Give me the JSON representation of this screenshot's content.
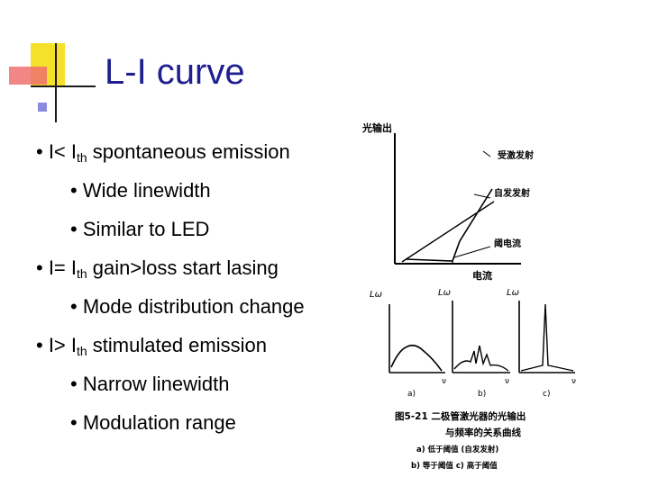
{
  "slide": {
    "title": "L-I curve",
    "bullets": [
      {
        "level": 1,
        "prefix": "• I< I",
        "sub": "th",
        "suffix": " spontaneous emission"
      },
      {
        "level": 2,
        "text": "• Wide linewidth"
      },
      {
        "level": 2,
        "text": "• Similar to LED"
      },
      {
        "level": 1,
        "prefix": "• I= I",
        "sub": "th",
        "suffix": " gain>loss start lasing"
      },
      {
        "level": 2,
        "text": "• Mode distribution change"
      },
      {
        "level": 1,
        "prefix": "• I> I",
        "sub": "th",
        "suffix": " stimulated emission"
      },
      {
        "level": 2,
        "text": "• Narrow linewidth"
      },
      {
        "level": 2,
        "text": "• Modulation range"
      }
    ]
  },
  "figure": {
    "y_axis_label": "光输出",
    "x_axis_label": "电流",
    "curve_labels": [
      "受激发射",
      "自发发射",
      "阈电流"
    ],
    "spectra": [
      {
        "panel_label": "a)",
        "y_label": "Lω",
        "x_label": "ν"
      },
      {
        "panel_label": "b)",
        "y_label": "Lω",
        "x_label": "ν"
      },
      {
        "panel_label": "c)",
        "y_label": "Lω",
        "x_label": "ν"
      }
    ],
    "caption_line1": "图5-21  二极管激光器的光输出",
    "caption_line2": "与频率的关系曲线",
    "caption_line3": "a) 低于阈值 (自发发射)",
    "caption_line4": "b) 等于阈值    c) 高于阈值"
  },
  "colors": {
    "title": "#1f1f8f",
    "deco_yellow": "#f5e02a",
    "deco_pink": "#f07070",
    "deco_line": "#1a1a1a"
  }
}
